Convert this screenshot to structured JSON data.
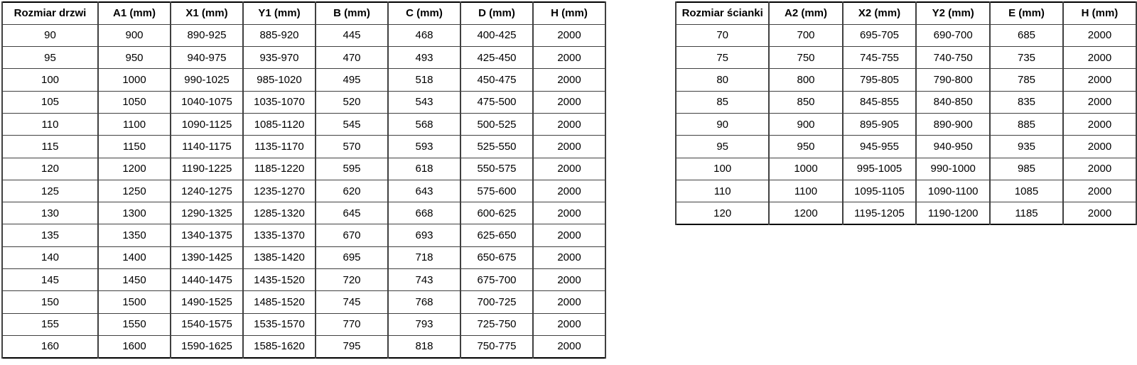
{
  "styles": {
    "background": "#ffffff",
    "text_color": "#000000",
    "border_outer": "#000000",
    "border_inner": "#404040"
  },
  "chart_data": [
    {
      "type": "table",
      "name": "door-sizes",
      "columns": [
        "Rozmiar drzwi",
        "A1 (mm)",
        "X1 (mm)",
        "Y1 (mm)",
        "B (mm)",
        "C (mm)",
        "D (mm)",
        "H (mm)"
      ],
      "rows": [
        [
          "90",
          "900",
          "890-925",
          "885-920",
          "445",
          "468",
          "400-425",
          "2000"
        ],
        [
          "95",
          "950",
          "940-975",
          "935-970",
          "470",
          "493",
          "425-450",
          "2000"
        ],
        [
          "100",
          "1000",
          "990-1025",
          "985-1020",
          "495",
          "518",
          "450-475",
          "2000"
        ],
        [
          "105",
          "1050",
          "1040-1075",
          "1035-1070",
          "520",
          "543",
          "475-500",
          "2000"
        ],
        [
          "110",
          "1100",
          "1090-1125",
          "1085-1120",
          "545",
          "568",
          "500-525",
          "2000"
        ],
        [
          "115",
          "1150",
          "1140-1175",
          "1135-1170",
          "570",
          "593",
          "525-550",
          "2000"
        ],
        [
          "120",
          "1200",
          "1190-1225",
          "1185-1220",
          "595",
          "618",
          "550-575",
          "2000"
        ],
        [
          "125",
          "1250",
          "1240-1275",
          "1235-1270",
          "620",
          "643",
          "575-600",
          "2000"
        ],
        [
          "130",
          "1300",
          "1290-1325",
          "1285-1320",
          "645",
          "668",
          "600-625",
          "2000"
        ],
        [
          "135",
          "1350",
          "1340-1375",
          "1335-1370",
          "670",
          "693",
          "625-650",
          "2000"
        ],
        [
          "140",
          "1400",
          "1390-1425",
          "1385-1420",
          "695",
          "718",
          "650-675",
          "2000"
        ],
        [
          "145",
          "1450",
          "1440-1475",
          "1435-1520",
          "720",
          "743",
          "675-700",
          "2000"
        ],
        [
          "150",
          "1500",
          "1490-1525",
          "1485-1520",
          "745",
          "768",
          "700-725",
          "2000"
        ],
        [
          "155",
          "1550",
          "1540-1575",
          "1535-1570",
          "770",
          "793",
          "725-750",
          "2000"
        ],
        [
          "160",
          "1600",
          "1590-1625",
          "1585-1620",
          "795",
          "818",
          "750-775",
          "2000"
        ]
      ]
    },
    {
      "type": "table",
      "name": "wall-sizes",
      "columns": [
        "Rozmiar ścianki",
        "A2 (mm)",
        "X2 (mm)",
        "Y2 (mm)",
        "E (mm)",
        "H (mm)"
      ],
      "rows": [
        [
          "70",
          "700",
          "695-705",
          "690-700",
          "685",
          "2000"
        ],
        [
          "75",
          "750",
          "745-755",
          "740-750",
          "735",
          "2000"
        ],
        [
          "80",
          "800",
          "795-805",
          "790-800",
          "785",
          "2000"
        ],
        [
          "85",
          "850",
          "845-855",
          "840-850",
          "835",
          "2000"
        ],
        [
          "90",
          "900",
          "895-905",
          "890-900",
          "885",
          "2000"
        ],
        [
          "95",
          "950",
          "945-955",
          "940-950",
          "935",
          "2000"
        ],
        [
          "100",
          "1000",
          "995-1005",
          "990-1000",
          "985",
          "2000"
        ],
        [
          "110",
          "1100",
          "1095-1105",
          "1090-1100",
          "1085",
          "2000"
        ],
        [
          "120",
          "1200",
          "1195-1205",
          "1190-1200",
          "1185",
          "2000"
        ]
      ]
    }
  ]
}
